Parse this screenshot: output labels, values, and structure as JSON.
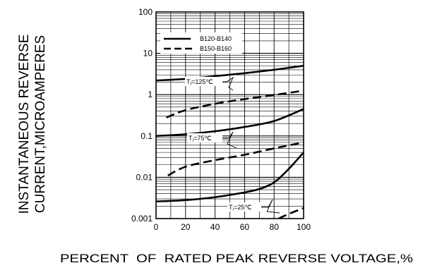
{
  "chart_data": {
    "type": "line",
    "xlabel": "PERCENT  OF  RATED PEAK REVERSE VOLTAGE,%",
    "ylabel_lines": [
      "INSTANTANEOUS REVERSE",
      "CURRENT,MICROAMPERES"
    ],
    "xlim": [
      0,
      100
    ],
    "ylim": [
      0.001,
      100
    ],
    "yscale": "log",
    "grid": true,
    "x_ticks": [
      "0",
      "20",
      "40",
      "60",
      "80",
      "100"
    ],
    "x_tick_values": [
      0,
      20,
      40,
      60,
      80,
      100
    ],
    "y_ticks": [
      "0.001",
      "0.01",
      "0.1",
      "1",
      "10",
      "100"
    ],
    "y_tick_values": [
      0.001,
      0.01,
      0.1,
      1,
      10,
      100
    ],
    "legend_position": "top-left",
    "legend": [
      {
        "label": "B120-B140",
        "style": "solid"
      },
      {
        "label": "B150-B160",
        "style": "dashed"
      }
    ],
    "annotations": [
      {
        "text": "Tⱼ=125℃"
      },
      {
        "text": "Tⱼ=75℃"
      },
      {
        "text": "Tⱼ=25℃"
      }
    ],
    "series": [
      {
        "style": "solid",
        "x": [
          0,
          20,
          40,
          60,
          80,
          100
        ],
        "y": [
          2.2,
          2.4,
          2.8,
          3.3,
          4.0,
          5.0
        ]
      },
      {
        "style": "dashed",
        "x": [
          7,
          20,
          40,
          60,
          80,
          100
        ],
        "y": [
          0.28,
          0.42,
          0.6,
          0.78,
          0.98,
          1.25
        ]
      },
      {
        "style": "solid",
        "x": [
          0,
          20,
          40,
          60,
          80,
          100
        ],
        "y": [
          0.1,
          0.11,
          0.13,
          0.165,
          0.23,
          0.45
        ]
      },
      {
        "style": "dashed",
        "x": [
          8,
          20,
          40,
          60,
          80,
          100
        ],
        "y": [
          0.011,
          0.018,
          0.026,
          0.035,
          0.05,
          0.07
        ]
      },
      {
        "style": "solid",
        "x": [
          0,
          20,
          40,
          60,
          70,
          80,
          90,
          100
        ],
        "y": [
          0.0026,
          0.0028,
          0.0033,
          0.0043,
          0.0052,
          0.0075,
          0.016,
          0.04
        ]
      },
      {
        "style": "dashed",
        "x": [
          83,
          90,
          100
        ],
        "y": [
          0.001,
          0.0013,
          0.0018
        ]
      }
    ]
  }
}
